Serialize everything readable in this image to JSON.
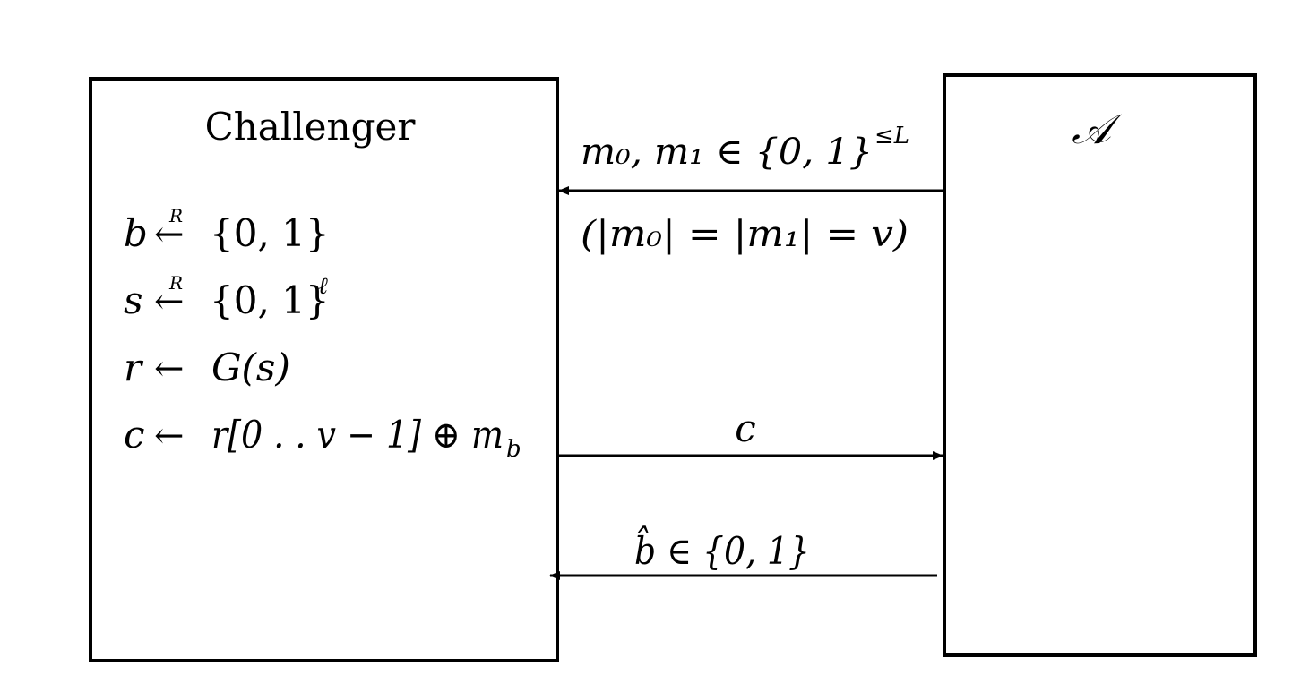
{
  "challenger": {
    "title": "Challenger",
    "steps": [
      {
        "var": "b",
        "op": "←",
        "over": "R",
        "rhs": "{0, 1}",
        "sup": ""
      },
      {
        "var": "s",
        "op": "←",
        "over": "R",
        "rhs": "{0, 1}",
        "sup": "ℓ"
      },
      {
        "var": "r",
        "op": "←",
        "over": "",
        "rhs": "G(s)",
        "sup": ""
      },
      {
        "var": "c",
        "op": "←",
        "over": "",
        "rhs": "r[0 . . v − 1] ⊕ m",
        "sup": "",
        "sub": "b"
      }
    ]
  },
  "adversary": {
    "title": "𝒜"
  },
  "messages": [
    {
      "direction": "to-challenger",
      "label": "m₀, m₁ ∈ {0, 1}",
      "label_sup": "≤L",
      "note": "(|m₀| = |m₁| = v)"
    },
    {
      "direction": "to-adversary",
      "label": "c"
    },
    {
      "direction": "to-challenger",
      "label": "b̂ ∈ {0, 1}"
    }
  ]
}
